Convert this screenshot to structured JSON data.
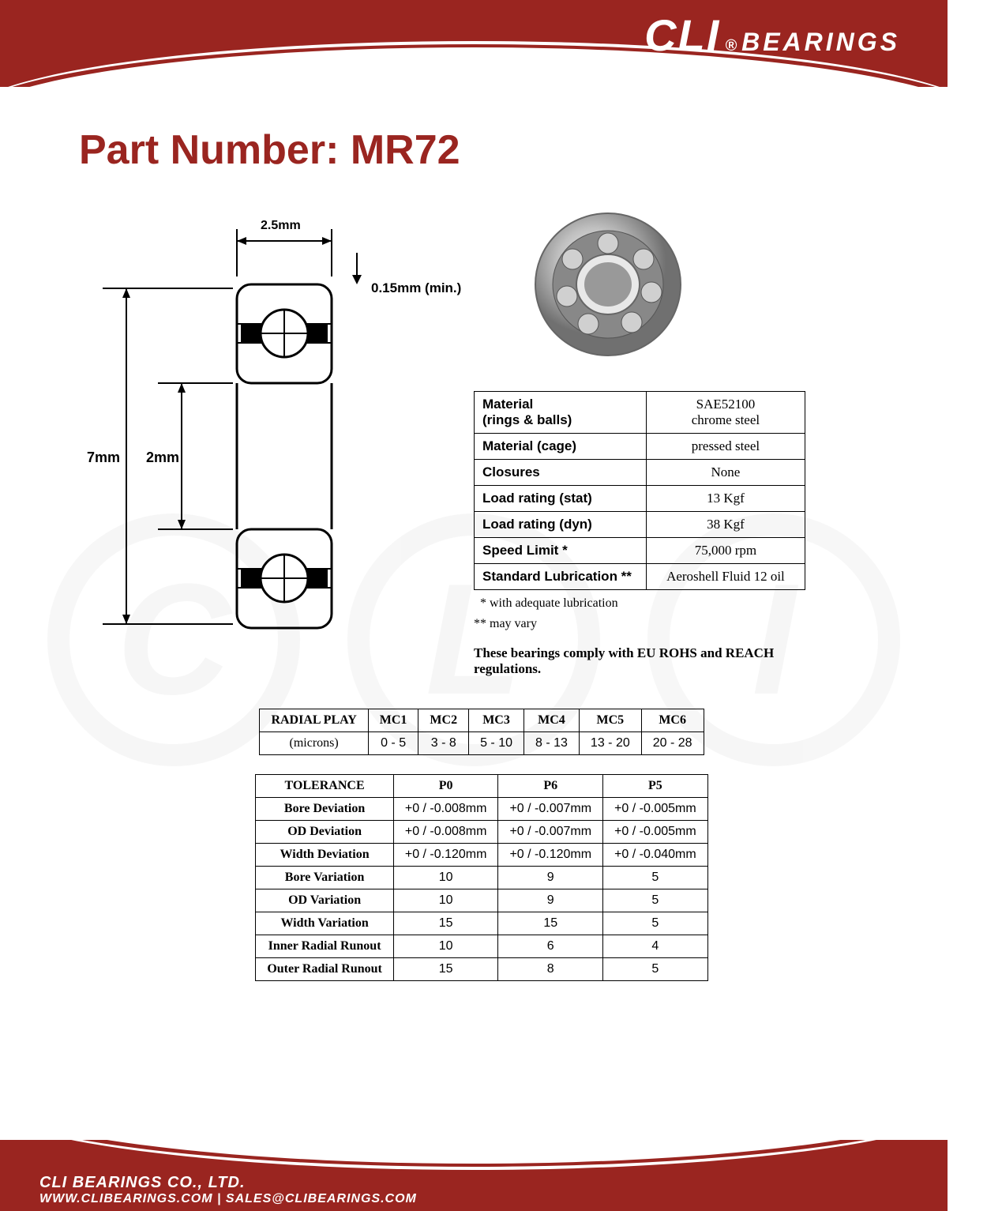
{
  "brand": {
    "cli": "CLI",
    "reg": "®",
    "bearings": "BEARINGS"
  },
  "title": "Part Number: MR72",
  "diagram": {
    "width_label": "2.5mm",
    "chamfer_label": "0.15mm (min.)",
    "od_label": "7mm",
    "id_label": "2mm",
    "stroke": "#000000",
    "stroke_width": 2.5
  },
  "specs": {
    "rows": [
      {
        "label": "Material\n(rings & balls)",
        "value": "SAE52100\nchrome steel"
      },
      {
        "label": "Material (cage)",
        "value": "pressed steel"
      },
      {
        "label": "Closures",
        "value": "None"
      },
      {
        "label": "Load rating (stat)",
        "value": "13 Kgf"
      },
      {
        "label": "Load rating (dyn)",
        "value": "38 Kgf"
      },
      {
        "label": "Speed Limit *",
        "value": "75,000 rpm"
      },
      {
        "label": "Standard Lubrication **",
        "value": "Aeroshell Fluid 12 oil"
      }
    ],
    "note1": "  * with adequate lubrication",
    "note2": "** may vary",
    "compliance": "These bearings comply with EU ROHS and REACH  regulations."
  },
  "radial": {
    "header": [
      "RADIAL PLAY",
      "MC1",
      "MC2",
      "MC3",
      "MC4",
      "MC5",
      "MC6"
    ],
    "unit_label": "(microns)",
    "values": [
      "0 - 5",
      "3 - 8",
      "5 - 10",
      "8 - 13",
      "13 - 20",
      "20 - 28"
    ]
  },
  "tolerance": {
    "header": [
      "TOLERANCE",
      "P0",
      "P6",
      "P5"
    ],
    "rows": [
      [
        "Bore Deviation",
        "+0 / -0.008mm",
        "+0 / -0.007mm",
        "+0 / -0.005mm"
      ],
      [
        "OD Deviation",
        "+0 / -0.008mm",
        "+0 / -0.007mm",
        "+0 / -0.005mm"
      ],
      [
        "Width Deviation",
        "+0 / -0.120mm",
        "+0 / -0.120mm",
        "+0 / -0.040mm"
      ],
      [
        "Bore Variation",
        "10",
        "9",
        "5"
      ],
      [
        "OD Variation",
        "10",
        "9",
        "5"
      ],
      [
        "Width Variation",
        "15",
        "15",
        "5"
      ],
      [
        "Inner Radial Runout",
        "10",
        "6",
        "4"
      ],
      [
        "Outer Radial Runout",
        "15",
        "8",
        "5"
      ]
    ]
  },
  "footer": {
    "company": "CLI BEARINGS CO., LTD.",
    "contact": "WWW.CLIBEARINGS.COM   |   SALES@CLIBEARINGS.COM"
  },
  "colors": {
    "brand_red": "#9a2520",
    "page_bg": "#ffffff",
    "table_border": "#000000",
    "watermark": "#999999"
  }
}
